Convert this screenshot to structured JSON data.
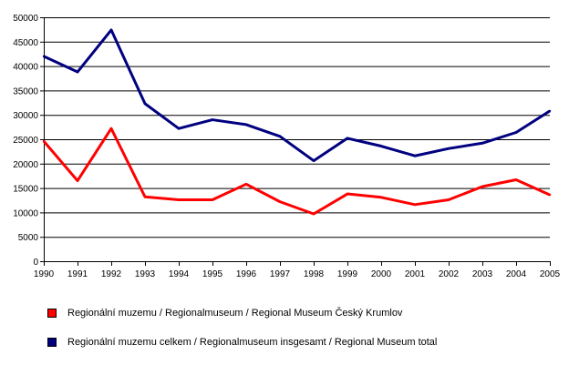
{
  "chart_data": {
    "type": "line",
    "title": "",
    "xlabel": "",
    "ylabel": "",
    "x": [
      "1990",
      "1991",
      "1992",
      "1993",
      "1994",
      "1995",
      "1996",
      "1997",
      "1998",
      "1999",
      "2000",
      "2001",
      "2002",
      "2003",
      "2004",
      "2005"
    ],
    "ylim": [
      0,
      50000
    ],
    "y_ticks": [
      "0",
      "5000",
      "10000",
      "15000",
      "20000",
      "25000",
      "30000",
      "35000",
      "40000",
      "45000",
      "50000"
    ],
    "grid": true,
    "legend_position": "bottom",
    "series": [
      {
        "name": "Regionální muzemu / Regionalmuseum / Regional Museum Český Krumlov",
        "color": "#ff0000",
        "values": [
          24600,
          16500,
          27200,
          13200,
          12600,
          12600,
          15800,
          12200,
          9700,
          13800,
          13100,
          11600,
          12600,
          15300,
          16700,
          13600
        ]
      },
      {
        "name": "Regionální muzemu celkem / Regionalmuseum insgesamt / Regional Museum total",
        "color": "#000080",
        "values": [
          42000,
          38800,
          47400,
          32300,
          27200,
          29000,
          28000,
          25600,
          20600,
          25200,
          23600,
          21600,
          23100,
          24200,
          26400,
          30800
        ]
      }
    ]
  }
}
